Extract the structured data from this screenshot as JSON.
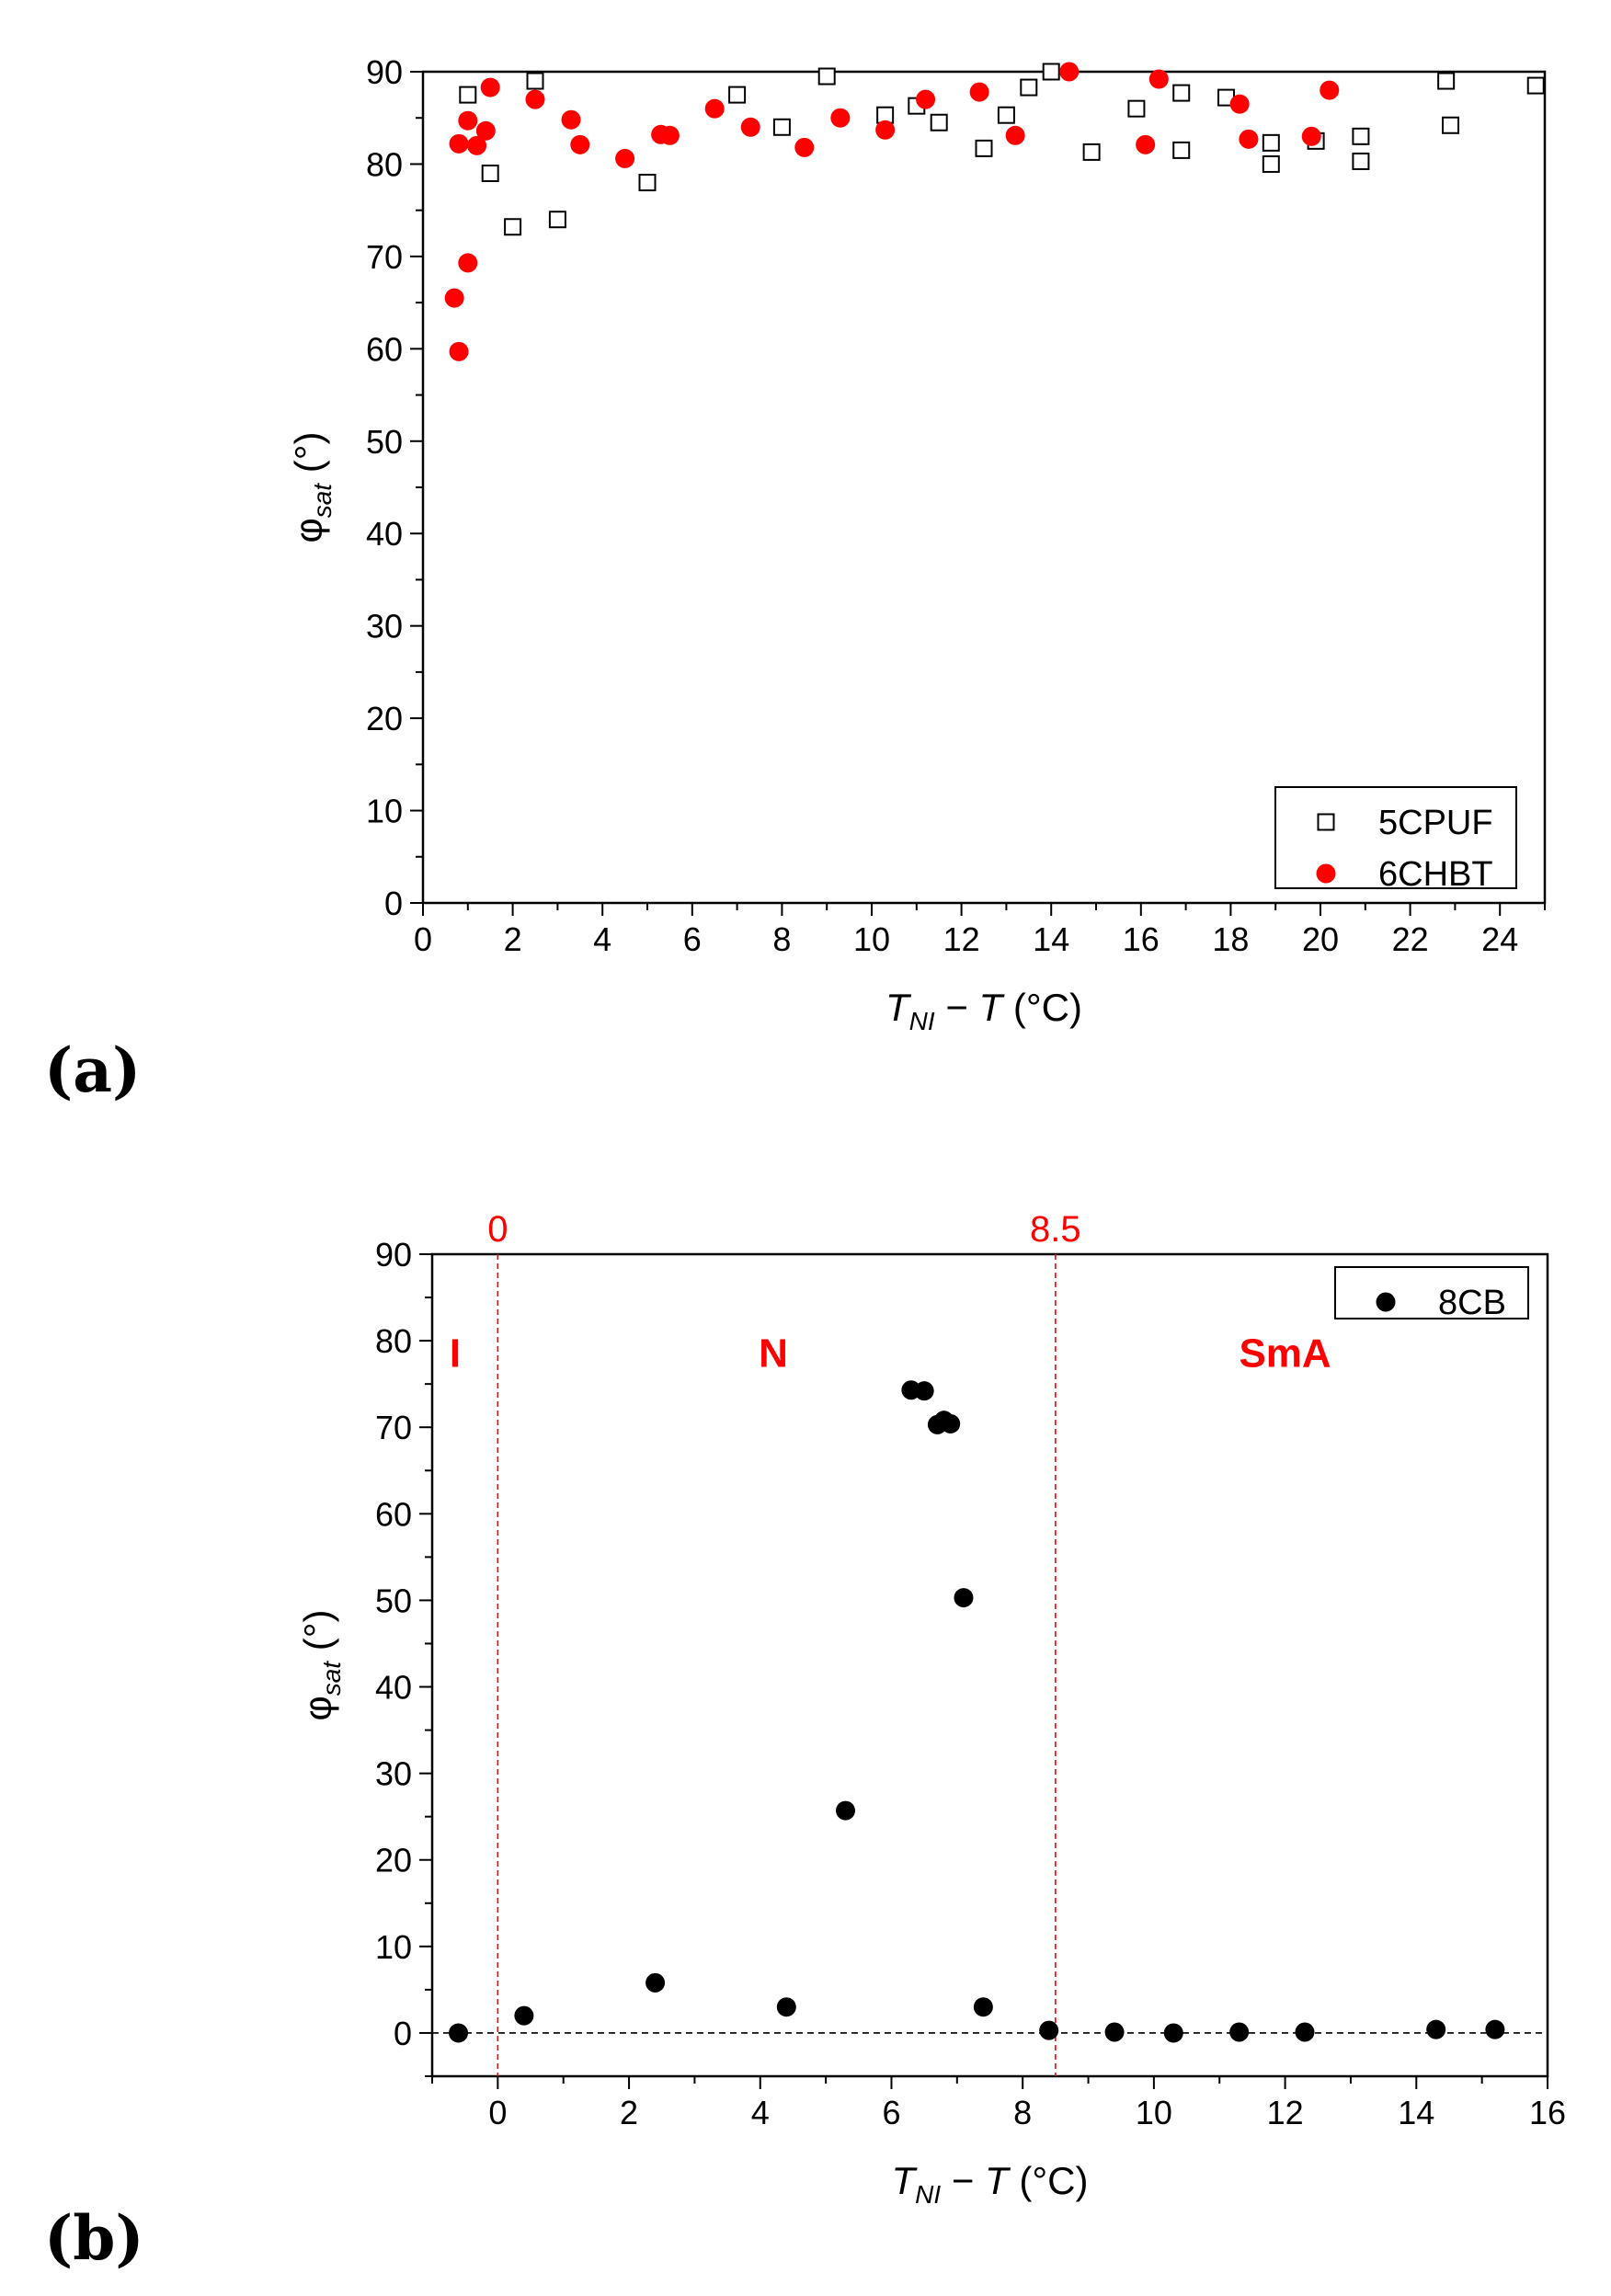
{
  "panel_labels": {
    "a": "(a)",
    "b": "(b)"
  },
  "colors": {
    "red": "#ff0000",
    "black": "#000000"
  },
  "chart_data": [
    {
      "type": "scatter",
      "panel": "(a)",
      "xlabel": {
        "italic_T": "T",
        "subscript": "NI",
        "rest": " − ",
        "italic_T2": "T",
        "unit": " (°C)"
      },
      "ylabel": {
        "symbol": "φ",
        "subscript": "sat",
        "unit": " (°)"
      },
      "xlim": [
        0,
        25
      ],
      "ylim": [
        0,
        90
      ],
      "xticks": [
        0,
        2,
        4,
        6,
        8,
        10,
        12,
        14,
        16,
        18,
        20,
        22,
        24
      ],
      "yticks": [
        0,
        10,
        20,
        30,
        40,
        50,
        60,
        70,
        80,
        90
      ],
      "grid": false,
      "legend_position": "bottom-right",
      "series": [
        {
          "name": "5CPUF",
          "marker": "open-square",
          "color": "#000000",
          "x": [
            1.0,
            1.5,
            2.0,
            2.5,
            3.0,
            5.0,
            7.0,
            8.0,
            9.0,
            10.3,
            11.0,
            11.5,
            12.5,
            13.0,
            13.5,
            14.0,
            14.9,
            15.9,
            16.9,
            16.9,
            17.9,
            18.9,
            18.9,
            19.9,
            20.9,
            20.9,
            22.8,
            22.9,
            24.8
          ],
          "y": [
            87.5,
            79.0,
            73.2,
            89.0,
            74.0,
            78.0,
            87.5,
            84.0,
            89.5,
            85.3,
            86.3,
            84.5,
            81.7,
            85.3,
            88.3,
            90.0,
            81.3,
            86.0,
            87.7,
            81.5,
            87.2,
            82.3,
            80.0,
            82.5,
            80.3,
            83.0,
            89.0,
            84.2,
            88.5
          ]
        },
        {
          "name": "6CHBT",
          "marker": "filled-circle",
          "color": "#ff0000",
          "x": [
            0.7,
            0.8,
            0.8,
            1.0,
            1.0,
            1.2,
            1.4,
            1.5,
            2.5,
            3.3,
            3.5,
            4.5,
            5.3,
            5.5,
            6.5,
            7.3,
            8.5,
            9.3,
            10.3,
            11.2,
            12.4,
            13.2,
            14.4,
            16.1,
            16.4,
            18.2,
            18.4,
            19.8,
            20.2
          ],
          "y": [
            65.5,
            82.2,
            59.7,
            69.3,
            84.7,
            82.0,
            83.6,
            88.3,
            87.0,
            84.8,
            82.1,
            80.6,
            83.2,
            83.1,
            86.0,
            84.0,
            81.8,
            85.0,
            83.7,
            87.0,
            87.8,
            83.1,
            90.0,
            82.1,
            89.2,
            86.5,
            82.7,
            83.0,
            88.0
          ]
        }
      ]
    },
    {
      "type": "scatter",
      "panel": "(b)",
      "xlabel": {
        "italic_T": "T",
        "subscript": "NI",
        "rest": " − ",
        "italic_T2": "T",
        "unit": " (°C)"
      },
      "ylabel": {
        "symbol": "φ",
        "subscript": "sat",
        "unit": " (°)"
      },
      "xlim": [
        -1,
        16
      ],
      "ylim": [
        -5,
        90
      ],
      "xticks": [
        0,
        2,
        4,
        6,
        8,
        10,
        12,
        14,
        16
      ],
      "yticks": [
        0,
        10,
        20,
        30,
        40,
        50,
        60,
        70,
        80,
        90
      ],
      "grid": false,
      "legend_position": "top-right",
      "vertical_lines": [
        {
          "x": 0,
          "label": "0"
        },
        {
          "x": 8.5,
          "label": "8.5"
        }
      ],
      "horizontal_line": {
        "y": 0
      },
      "phase_labels": [
        {
          "text": "I",
          "x": -0.65,
          "y": 77
        },
        {
          "text": "N",
          "x": 4.2,
          "y": 77
        },
        {
          "text": "SmA",
          "x": 12.0,
          "y": 77
        }
      ],
      "series": [
        {
          "name": "8CB",
          "marker": "filled-circle",
          "color": "#000000",
          "x": [
            -0.6,
            0.4,
            2.4,
            4.4,
            5.3,
            6.3,
            6.5,
            6.7,
            6.8,
            6.9,
            7.1,
            7.4,
            8.4,
            9.4,
            10.3,
            11.3,
            12.3,
            14.3,
            15.2
          ],
          "y": [
            0.0,
            2.0,
            5.8,
            3.0,
            25.7,
            74.3,
            74.2,
            70.3,
            70.8,
            70.4,
            50.3,
            3.0,
            0.3,
            0.1,
            0.0,
            0.1,
            0.1,
            0.4,
            0.4
          ]
        }
      ]
    }
  ]
}
